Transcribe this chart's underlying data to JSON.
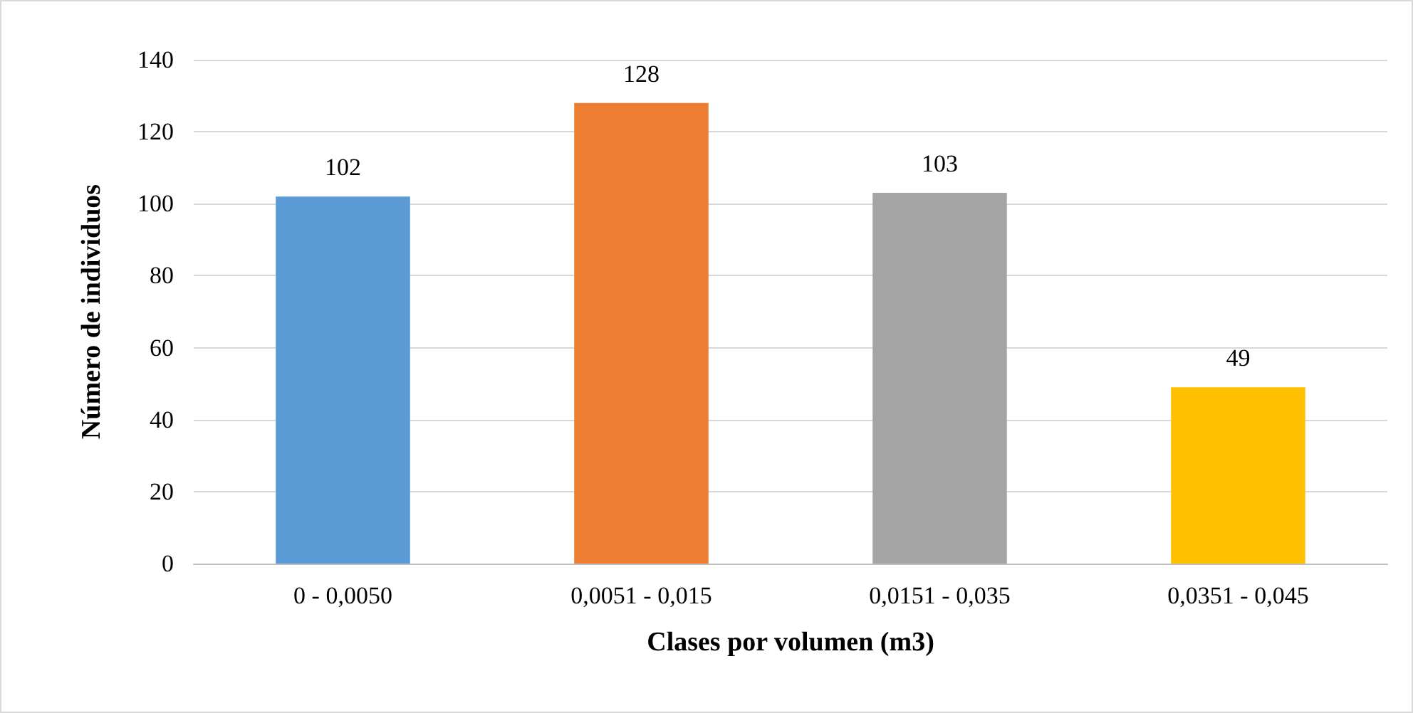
{
  "chart_data": {
    "type": "bar",
    "xlabel": "Clases por volumen (m3)",
    "ylabel": "Número de individuos",
    "categories": [
      "0 - 0,0050",
      "0,0051 - 0,015",
      "0,0151 - 0,035",
      "0,0351 - 0,045"
    ],
    "values": [
      102,
      128,
      103,
      49
    ],
    "colors": [
      "#5b9bd5",
      "#ed7d31",
      "#a5a5a5",
      "#ffc000"
    ],
    "ylim": [
      0,
      140
    ],
    "yticks": [
      0,
      20,
      40,
      60,
      80,
      100,
      120,
      140
    ],
    "grid": "y",
    "data_labels": true
  }
}
